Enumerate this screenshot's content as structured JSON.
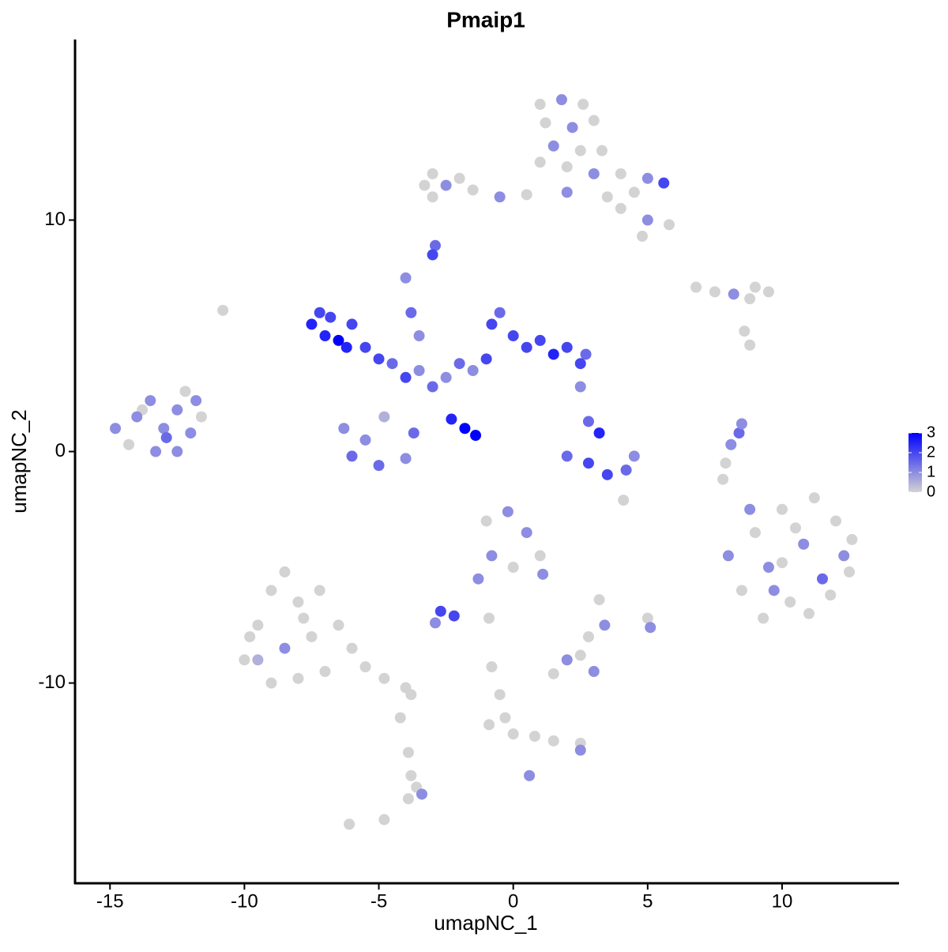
{
  "chart_data": {
    "type": "scatter",
    "title": "Pmaip1",
    "xlabel": "umapNC_1",
    "ylabel": "umapNC_2",
    "xlim": [
      -16.3,
      14.35
    ],
    "ylim": [
      -18.65,
      17.8
    ],
    "xticks": [
      -15,
      -10,
      -5,
      0,
      5,
      10
    ],
    "yticks": [
      -10,
      0,
      10
    ],
    "grid": false,
    "colorbar": {
      "lim": [
        0,
        3
      ],
      "ticks": [
        0,
        1,
        2,
        3
      ],
      "colors": [
        "#d3d3d3",
        "#0000ff"
      ]
    },
    "x": [
      1.0,
      1.8,
      2.6,
      1.2,
      2.2,
      3.0,
      1.5,
      2.5,
      3.3,
      1.0,
      2.0,
      3.0,
      4.0,
      5.0,
      5.6,
      4.5,
      4.0,
      5.0,
      5.8,
      4.8,
      3.5,
      2.0,
      0.5,
      -0.5,
      -1.5,
      -2.5,
      -3.3,
      -2.0,
      -3.0,
      -3.0,
      -2.9,
      -3.0,
      6.8,
      7.5,
      8.2,
      9.0,
      9.5,
      8.8,
      8.6,
      8.8,
      -14.8,
      -14.0,
      -13.5,
      -13.0,
      -12.5,
      -12.2,
      -11.6,
      -14.3,
      -13.3,
      -12.5,
      -13.8,
      -12.9,
      -12.0,
      -11.8,
      -10.8,
      -7.5,
      -7.2,
      -7.0,
      -6.5,
      -6.8,
      -6.0,
      -6.2,
      -5.5,
      -5.0,
      -4.5,
      -4.0,
      -3.5,
      -3.0,
      -2.5,
      -2.0,
      -1.5,
      -1.0,
      -0.8,
      -0.5,
      0.0,
      0.5,
      1.0,
      1.5,
      2.0,
      2.5,
      2.7,
      2.5,
      -4.0,
      -3.8,
      -3.5,
      -6.3,
      -6.0,
      -5.0,
      -4.0,
      -3.7,
      -4.8,
      -5.5,
      -2.3,
      -1.8,
      -1.4,
      2.0,
      2.8,
      3.5,
      4.2,
      3.2,
      2.8,
      4.5,
      4.1,
      8.0,
      8.5,
      9.0,
      9.5,
      10.0,
      10.3,
      10.8,
      11.2,
      11.5,
      12.0,
      12.3,
      12.6,
      11.0,
      9.3,
      8.8,
      10.5,
      11.8,
      9.7,
      12.5,
      10.0,
      -1.0,
      -0.2,
      0.5,
      1.0,
      -0.8,
      0.0,
      1.1,
      -1.3,
      -2.7,
      -2.2,
      -2.9,
      -0.9,
      -10.0,
      -9.5,
      -9.0,
      -8.5,
      -8.0,
      -8.5,
      -7.5,
      -7.0,
      -8.0,
      -9.0,
      -9.8,
      -7.2,
      -6.5,
      -6.0,
      -5.5,
      -4.8,
      -4.0,
      -3.8,
      -9.5,
      -7.8,
      -4.2,
      -3.9,
      -3.8,
      -3.6,
      -3.9,
      -3.4,
      -4.8,
      -6.1,
      1.5,
      2.0,
      2.5,
      3.0,
      2.8,
      3.4,
      3.2,
      5.0,
      5.1,
      0.6,
      -0.8,
      -0.5,
      -0.3,
      0.0,
      0.8,
      1.5,
      2.5,
      2.5,
      -0.9,
      7.9,
      8.1,
      8.4,
      8.5,
      7.8
    ],
    "y": [
      15.0,
      15.2,
      15.0,
      14.2,
      14.0,
      14.3,
      13.2,
      13.0,
      13.0,
      12.5,
      12.3,
      12.0,
      12.0,
      11.8,
      11.6,
      11.2,
      10.5,
      10.0,
      9.8,
      9.3,
      11.0,
      11.2,
      11.1,
      11.0,
      11.3,
      11.5,
      11.5,
      11.8,
      11.0,
      12.0,
      8.9,
      8.5,
      7.1,
      6.9,
      6.8,
      7.1,
      6.9,
      6.6,
      5.2,
      4.6,
      1.0,
      1.5,
      2.2,
      1.0,
      1.8,
      2.6,
      1.5,
      0.3,
      0.0,
      0.0,
      1.8,
      0.6,
      0.8,
      2.2,
      6.1,
      5.5,
      6.0,
      5.0,
      4.8,
      5.8,
      5.5,
      4.5,
      4.5,
      4.0,
      3.8,
      3.2,
      3.5,
      2.8,
      3.2,
      3.8,
      3.5,
      4.0,
      5.5,
      6.0,
      5.0,
      4.5,
      4.8,
      4.2,
      4.5,
      3.8,
      4.2,
      2.8,
      7.5,
      6.0,
      5.0,
      1.0,
      -0.2,
      -0.6,
      -0.3,
      0.8,
      1.5,
      0.5,
      1.4,
      1.0,
      0.7,
      -0.2,
      -0.5,
      -1.0,
      -0.8,
      0.8,
      1.3,
      -0.2,
      -2.1,
      -4.5,
      -6.0,
      -3.5,
      -5.0,
      -2.5,
      -6.5,
      -4.0,
      -2.0,
      -5.5,
      -3.0,
      -4.5,
      -3.8,
      -7.0,
      -7.2,
      -2.5,
      -3.3,
      -6.2,
      -6.0,
      -5.2,
      -4.8,
      -3.0,
      -2.6,
      -3.5,
      -4.5,
      -4.5,
      -5.0,
      -5.3,
      -5.5,
      -6.9,
      -7.1,
      -7.4,
      -7.2,
      -9.0,
      -7.5,
      -6.0,
      -5.2,
      -6.5,
      -8.5,
      -8.0,
      -9.5,
      -9.8,
      -10.0,
      -8.0,
      -6.0,
      -7.5,
      -8.5,
      -9.3,
      -9.8,
      -10.2,
      -10.5,
      -9.0,
      -7.2,
      -11.5,
      -13.0,
      -14.0,
      -14.5,
      -15.0,
      -14.8,
      -15.9,
      -16.1,
      -9.6,
      -9.0,
      -8.8,
      -9.5,
      -8.0,
      -7.5,
      -6.4,
      -7.2,
      -7.6,
      -14.0,
      -9.3,
      -10.5,
      -11.5,
      -12.2,
      -12.3,
      -12.5,
      -12.6,
      -12.9,
      -11.8,
      -0.5,
      0.3,
      0.8,
      1.2,
      -1.2
    ],
    "values": [
      0,
      1,
      0,
      0,
      1,
      0,
      1,
      0,
      0,
      0,
      0,
      1,
      0,
      1,
      2,
      0,
      0,
      1,
      0,
      0,
      0,
      1,
      0,
      1,
      0,
      1,
      0,
      0,
      0,
      0,
      1.5,
      2,
      0,
      0,
      1,
      0,
      0,
      0,
      0,
      0,
      1,
      1,
      1,
      1,
      1,
      0,
      0,
      0,
      1,
      1,
      0,
      1.5,
      1,
      1,
      0,
      2.5,
      2,
      2.5,
      3,
      2,
      2,
      2.5,
      2,
      2,
      1.5,
      2,
      1,
      1.5,
      1,
      1.5,
      1,
      2,
      2,
      1.5,
      2,
      2,
      2,
      2.5,
      2,
      2,
      1.5,
      1,
      1,
      1.5,
      1,
      1,
      1.5,
      1.5,
      1,
      1.5,
      0.5,
      1,
      2.5,
      3,
      3,
      1.5,
      2,
      2,
      1.5,
      2.5,
      1.5,
      1,
      0,
      1,
      0,
      0,
      1,
      0,
      0,
      1,
      0,
      1.5,
      0,
      1,
      0,
      0,
      0,
      1,
      0,
      0,
      1,
      0,
      0,
      0,
      1,
      1,
      0,
      1,
      0,
      1,
      1,
      2,
      2,
      1,
      0,
      0,
      0,
      0,
      0,
      0,
      1,
      0,
      0,
      0,
      0,
      0,
      0,
      0,
      0,
      0,
      0,
      0,
      0,
      0.5,
      0,
      0,
      0,
      0,
      0,
      0,
      1,
      0,
      0,
      0,
      1,
      0,
      1,
      0,
      1,
      0,
      0,
      1,
      1,
      0,
      0,
      0,
      0,
      0,
      0,
      0,
      1,
      0,
      0,
      1,
      1.5,
      1,
      0
    ]
  }
}
